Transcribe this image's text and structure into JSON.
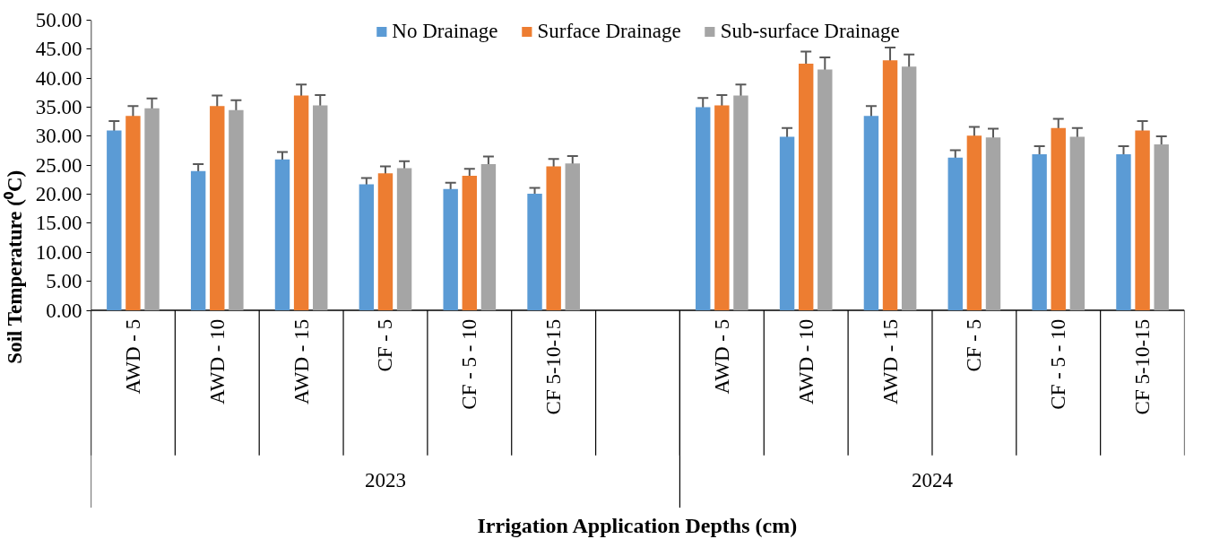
{
  "chart_data": {
    "type": "bar",
    "xlabel": "Irrigation Application Depths (cm)",
    "ylabel": "Soil Temperature (⁰C)",
    "categories": [
      "AWD - 5",
      "AWD - 10",
      "AWD - 15",
      "CF - 5",
      "CF - 5 - 10",
      "CF 5-10-15",
      null,
      "AWD - 5",
      "AWD - 10",
      "AWD - 15",
      "CF - 5",
      "CF - 5 - 10",
      "CF 5-10-15"
    ],
    "series": [
      {
        "name": "No Drainage",
        "color": "#5b9bd5",
        "values": [
          31.0,
          24.0,
          26.0,
          21.7,
          20.9,
          20.1,
          null,
          35.0,
          29.9,
          33.5,
          26.3,
          26.9,
          26.9
        ],
        "errors": [
          1.6,
          1.2,
          1.3,
          1.1,
          1.1,
          1.0,
          null,
          1.6,
          1.5,
          1.7,
          1.3,
          1.4,
          1.4
        ]
      },
      {
        "name": "Surface Drainage",
        "color": "#ed7d31",
        "values": [
          33.5,
          35.2,
          37.0,
          23.6,
          23.2,
          24.8,
          null,
          35.3,
          42.5,
          43.1,
          30.1,
          31.4,
          31.0
        ],
        "errors": [
          1.7,
          1.8,
          1.9,
          1.2,
          1.2,
          1.3,
          null,
          1.8,
          2.1,
          2.2,
          1.5,
          1.6,
          1.6
        ]
      },
      {
        "name": "Sub-surface Drainage",
        "color": "#a5a5a5",
        "values": [
          34.8,
          34.5,
          35.3,
          24.5,
          25.2,
          25.3,
          null,
          37.0,
          41.5,
          42.0,
          29.8,
          29.9,
          28.6
        ],
        "errors": [
          1.7,
          1.7,
          1.8,
          1.2,
          1.3,
          1.3,
          null,
          1.9,
          2.1,
          2.1,
          1.5,
          1.5,
          1.4
        ]
      }
    ],
    "annotations": [
      "2023",
      "2024"
    ],
    "ylim": [
      0,
      50
    ],
    "yticks": [
      {
        "value": 0,
        "label": "0.00"
      },
      {
        "value": 5,
        "label": "5.00"
      },
      {
        "value": 10,
        "label": "10.00"
      },
      {
        "value": 15,
        "label": "15.00"
      },
      {
        "value": 20,
        "label": "20.00"
      },
      {
        "value": 25,
        "label": "25.00"
      },
      {
        "value": 30,
        "label": "30.00"
      },
      {
        "value": 35,
        "label": "35.00"
      },
      {
        "value": 40,
        "label": "40.00"
      },
      {
        "value": 45,
        "label": "45.00"
      },
      {
        "value": 50,
        "label": "50.00"
      }
    ],
    "grid": false,
    "legend": "top"
  }
}
